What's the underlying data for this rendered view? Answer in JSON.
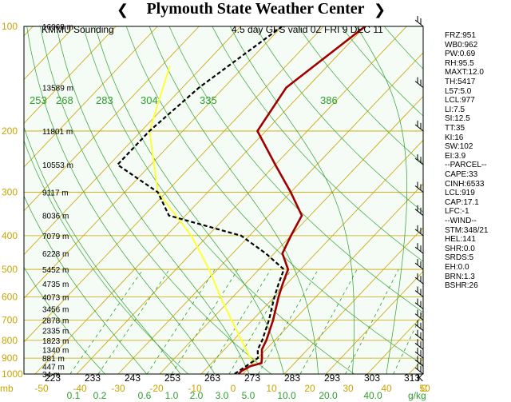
{
  "header": {
    "title": "Plymouth State Weather Center"
  },
  "chart_data": {
    "type": "skew-t",
    "station": "KMMU Sounding",
    "valid": "4.5 day GFS valid 0Z FRI 9 DEC 11",
    "pressure_ticks": [
      100,
      200,
      300,
      400,
      500,
      600,
      700,
      800,
      900,
      1000
    ],
    "heights": [
      {
        "p": 100,
        "label": "16068 m"
      },
      {
        "p": 150,
        "label": "13589 m"
      },
      {
        "p": 200,
        "label": "11801 m"
      },
      {
        "p": 250,
        "label": "10553 m"
      },
      {
        "p": 300,
        "label": "9117 m"
      },
      {
        "p": 350,
        "label": "8036 m"
      },
      {
        "p": 400,
        "label": "7079 m"
      },
      {
        "p": 450,
        "label": "6228 m"
      },
      {
        "p": 500,
        "label": "5452 m"
      },
      {
        "p": 550,
        "label": "4735 m"
      },
      {
        "p": 600,
        "label": "4073 m"
      },
      {
        "p": 650,
        "label": "3456 m"
      },
      {
        "p": 700,
        "label": "2878 m"
      },
      {
        "p": 750,
        "label": "2335 m"
      },
      {
        "p": 800,
        "label": "1823 m"
      },
      {
        "p": 850,
        "label": "1340 m"
      },
      {
        "p": 900,
        "label": "881 m"
      },
      {
        "p": 950,
        "label": "447 m"
      },
      {
        "p": 1000,
        "label": "34 m"
      }
    ],
    "temperature_ticks": {
      "unit": "C",
      "values": [
        -50,
        -40,
        -30,
        -20,
        -10,
        0,
        10,
        20,
        30,
        40,
        50
      ]
    },
    "kelvin_ticks": {
      "unit": "K",
      "values": [
        223,
        233,
        243,
        253,
        263,
        273,
        283,
        293,
        303,
        313
      ]
    },
    "theta_labels": [
      253,
      268,
      283,
      304,
      335,
      386
    ],
    "mixing_ratio_ticks": {
      "unit": "g/kg",
      "values": [
        "0.1",
        "0.2",
        "0.6",
        "1.0",
        "2.0",
        "3.0",
        "5.0",
        "10.0",
        "20.0",
        "40.0"
      ]
    },
    "temperature_profile": [
      {
        "p": 100,
        "t": -50
      },
      {
        "p": 150,
        "t": -55
      },
      {
        "p": 200,
        "t": -52
      },
      {
        "p": 250,
        "t": -40
      },
      {
        "p": 300,
        "t": -30
      },
      {
        "p": 350,
        "t": -22
      },
      {
        "p": 400,
        "t": -20
      },
      {
        "p": 450,
        "t": -18
      },
      {
        "p": 500,
        "t": -13
      },
      {
        "p": 550,
        "t": -11
      },
      {
        "p": 600,
        "t": -9
      },
      {
        "p": 700,
        "t": -5
      },
      {
        "p": 800,
        "t": -2
      },
      {
        "p": 850,
        "t": -1
      },
      {
        "p": 900,
        "t": 1
      },
      {
        "p": 930,
        "t": 2
      },
      {
        "p": 950,
        "t": 0
      },
      {
        "p": 980,
        "t": -1
      },
      {
        "p": 1000,
        "t": -1
      }
    ],
    "dewpoint_profile": [
      {
        "p": 100,
        "t": -70
      },
      {
        "p": 150,
        "t": -76
      },
      {
        "p": 200,
        "t": -78
      },
      {
        "p": 250,
        "t": -78
      },
      {
        "p": 300,
        "t": -62
      },
      {
        "p": 350,
        "t": -54
      },
      {
        "p": 400,
        "t": -32
      },
      {
        "p": 450,
        "t": -22
      },
      {
        "p": 500,
        "t": -14
      },
      {
        "p": 550,
        "t": -12
      },
      {
        "p": 600,
        "t": -10
      },
      {
        "p": 700,
        "t": -6
      },
      {
        "p": 800,
        "t": -3
      },
      {
        "p": 850,
        "t": -2
      },
      {
        "p": 900,
        "t": 0
      },
      {
        "p": 950,
        "t": -1
      },
      {
        "p": 1000,
        "t": -2
      }
    ],
    "parcel_profile": [
      {
        "p": 130,
        "t": -88
      },
      {
        "p": 200,
        "t": -78
      },
      {
        "p": 300,
        "t": -62
      },
      {
        "p": 400,
        "t": -44
      },
      {
        "p": 500,
        "t": -32
      },
      {
        "p": 600,
        "t": -23
      },
      {
        "p": 700,
        "t": -15
      },
      {
        "p": 800,
        "t": -8
      },
      {
        "p": 880,
        "t": -3
      },
      {
        "p": 930,
        "t": 0
      }
    ],
    "wind_barb_pressures": [
      100,
      150,
      200,
      250,
      300,
      350,
      400,
      450,
      500,
      550,
      600,
      650,
      700,
      750,
      800,
      850,
      900,
      950,
      1000
    ],
    "stability_indices": [
      "FRZ:951",
      "WB0:962",
      "PW:0.69",
      "RH:95.5",
      "MAXT:12.0",
      "TH:5417",
      "L57:5.0",
      "LCL:977",
      "LI:7.5",
      "SI:12.5",
      "TT:35",
      "KI:16",
      "SW:102",
      "EI:3.9",
      "--PARCEL--",
      "CAPE:33",
      "CINH:6533",
      "LCL:919",
      "CAP:17.1",
      "LFC:-1",
      "--WIND--",
      "STM:348/21",
      "HEL:141",
      "SHR:0.0",
      "SRDS:5",
      "EH:0.0",
      "BRN:1.3",
      "BSHR:26"
    ],
    "colors": {
      "background": "#f5fbf5",
      "isotherm": "#c9a400",
      "isobar": "#c9a400",
      "dry_adiabat": "#4caf50",
      "moist_adiabat": "#2e9e2e",
      "mixing_ratio": "#2e9e2e",
      "temperature": "#a00000",
      "dewpoint": "#000000",
      "parcel": "#ffff33",
      "axis_label": "#c9a400",
      "theta_label": "#2e9e2e"
    }
  }
}
